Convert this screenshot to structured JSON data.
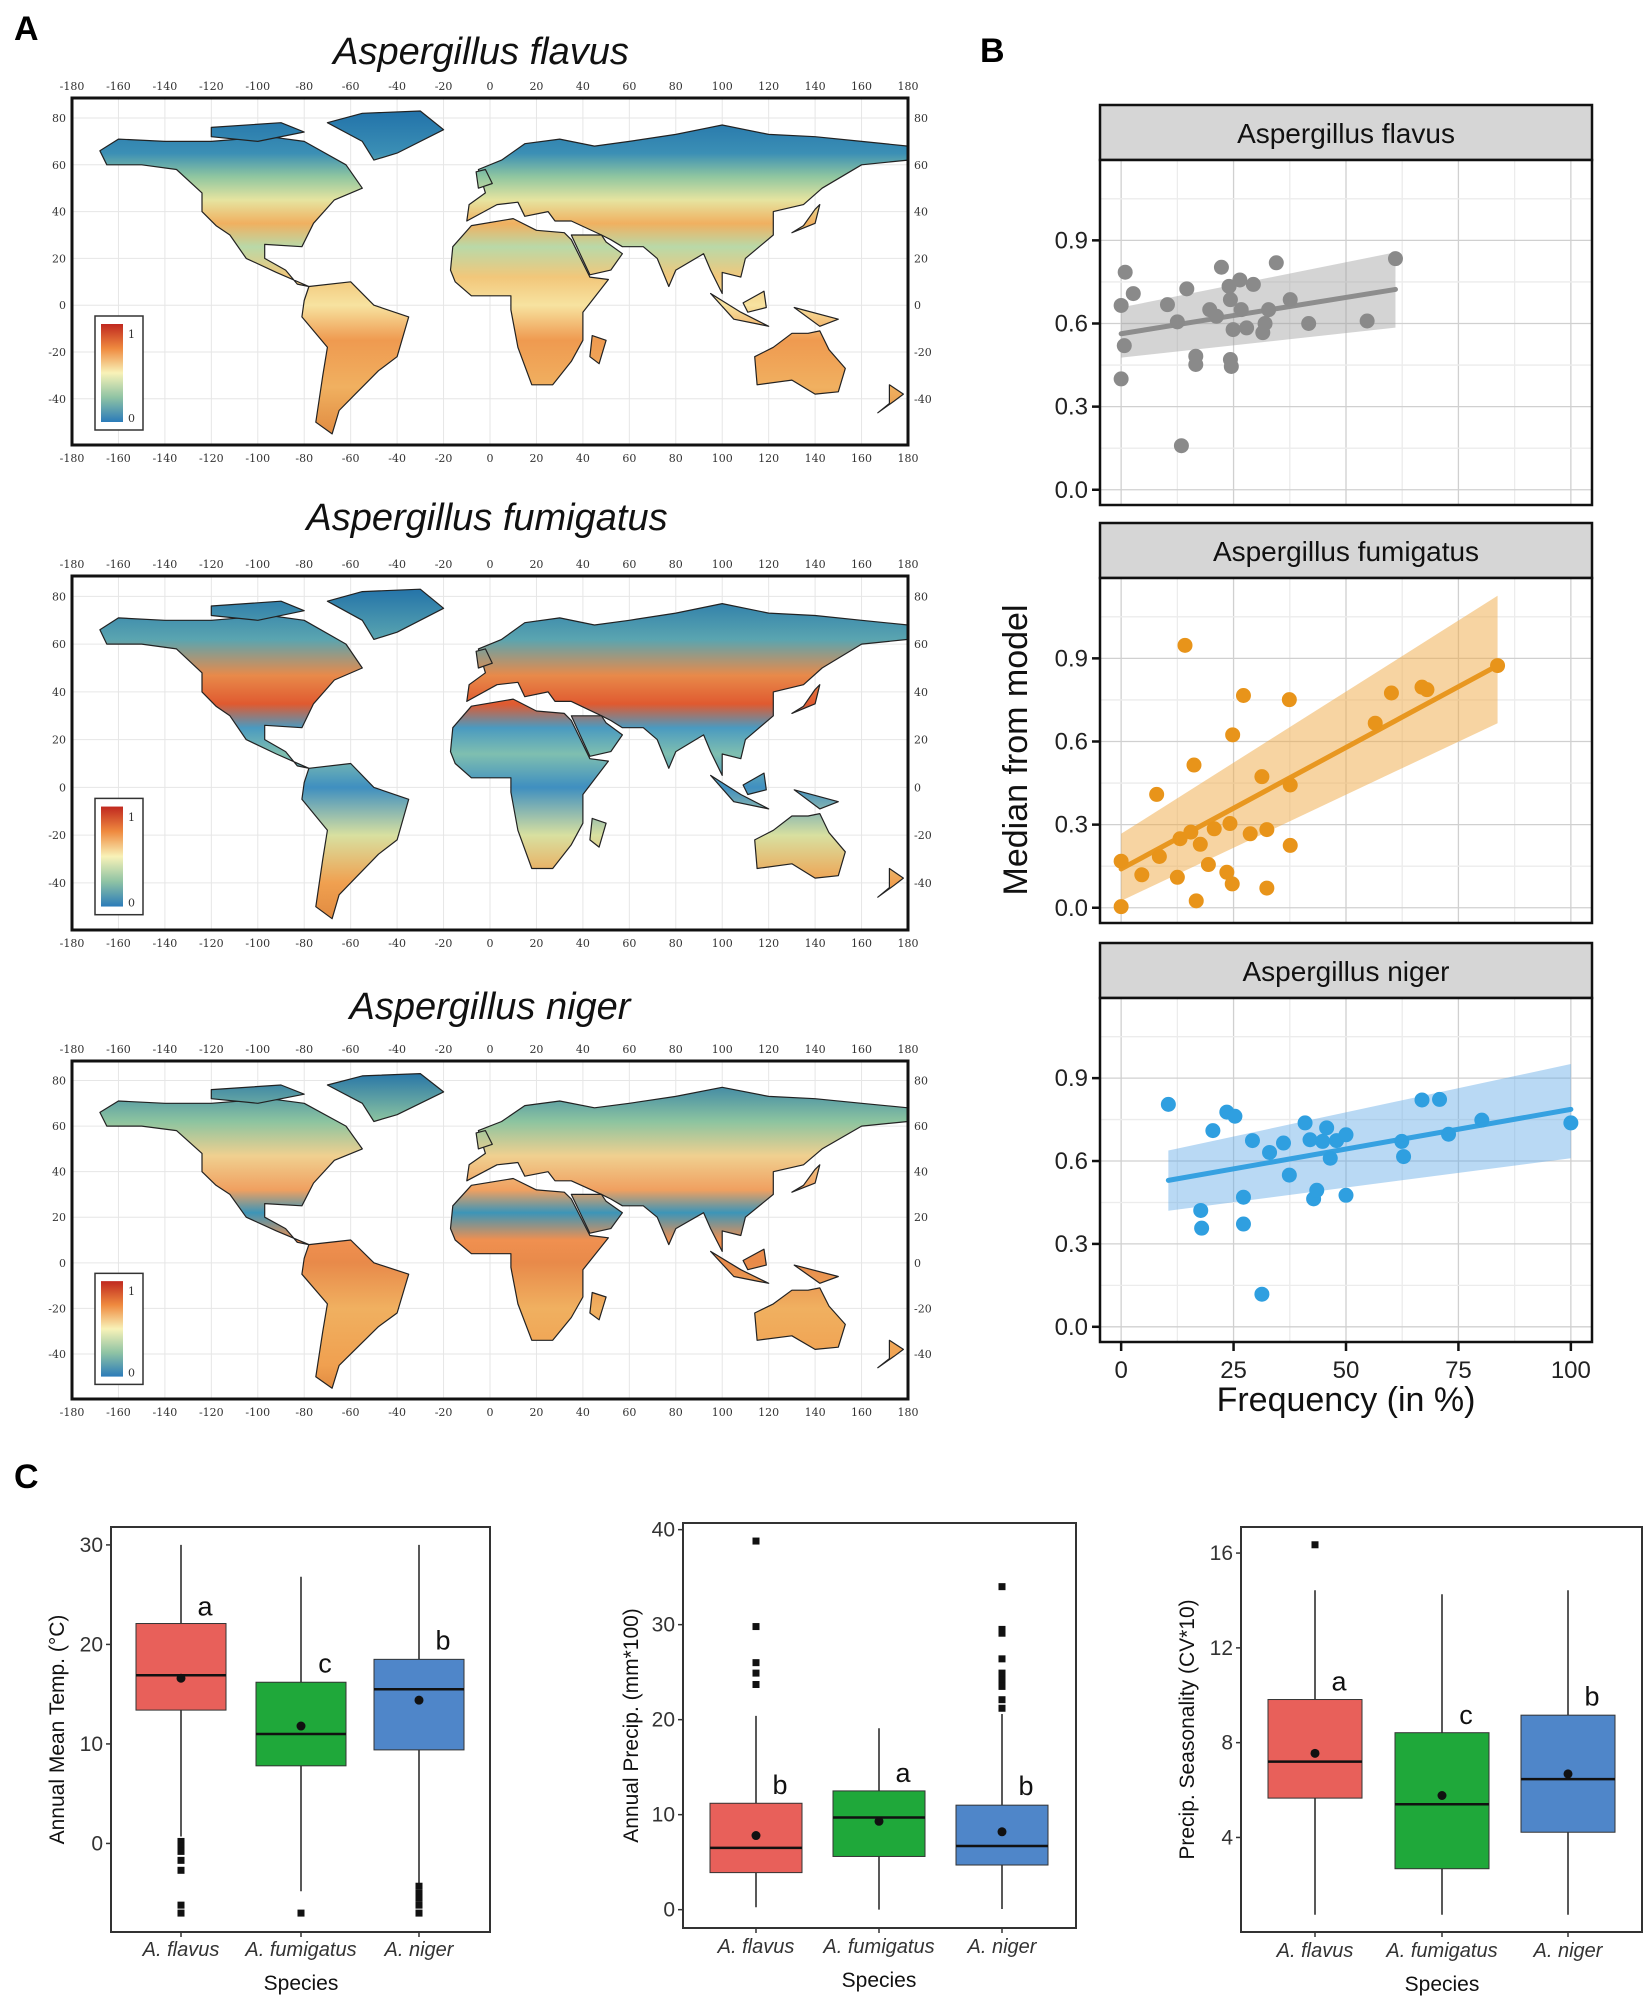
{
  "panel_labels": {
    "a": "A",
    "b": "B",
    "c": "C"
  },
  "panel_a": {
    "lon_ticks": [
      "-180",
      "-160",
      "-140",
      "-120",
      "-100",
      "-80",
      "-60",
      "-40",
      "-20",
      "0",
      "20",
      "40",
      "60",
      "80",
      "100",
      "120",
      "140",
      "160",
      "180"
    ],
    "lat_ticks": [
      "80",
      "60",
      "40",
      "20",
      "0",
      "-20",
      "-40"
    ],
    "maps": [
      {
        "title": "Aspergillus flavus",
        "legend_max": "1",
        "legend_min": "0"
      },
      {
        "title": "Aspergillus fumigatus",
        "legend_max": "1",
        "legend_min": "0"
      },
      {
        "title": "Aspergillus niger",
        "legend_max": "1",
        "legend_min": "0"
      }
    ]
  },
  "chart_data": [
    {
      "type": "scatter",
      "panel": "B",
      "xlabel": "Frequency (in %)",
      "ylabel": "Median from model",
      "xlim": [
        -4.7,
        104.7
      ],
      "ylim": [
        -0.055,
        1.19
      ],
      "x_ticks": [
        "0",
        "25",
        "50",
        "75",
        "100"
      ],
      "y_ticks": [
        "0.0",
        "0.3",
        "0.6",
        "0.9"
      ],
      "grid": true,
      "facets": [
        {
          "title": "Aspergillus flavus",
          "color": "#8a8a8a",
          "points": [
            [
              0.9,
              0.785
            ],
            [
              2.7,
              0.708
            ],
            [
              0,
              0.665
            ],
            [
              0.7,
              0.52
            ],
            [
              0,
              0.4
            ],
            [
              10.3,
              0.668
            ],
            [
              12.5,
              0.606
            ],
            [
              14.6,
              0.725
            ],
            [
              13.4,
              0.159
            ],
            [
              16.6,
              0.482
            ],
            [
              16.6,
              0.452
            ],
            [
              19.7,
              0.65
            ],
            [
              21.2,
              0.626
            ],
            [
              22.3,
              0.803
            ],
            [
              24.0,
              0.734
            ],
            [
              24.3,
              0.686
            ],
            [
              24.3,
              0.47
            ],
            [
              24.5,
              0.445
            ],
            [
              26.4,
              0.757
            ],
            [
              26.7,
              0.65
            ],
            [
              24.9,
              0.578
            ],
            [
              27.9,
              0.584
            ],
            [
              29.4,
              0.741
            ],
            [
              31.5,
              0.567
            ],
            [
              32.0,
              0.6
            ],
            [
              32.8,
              0.65
            ],
            [
              34.5,
              0.819
            ],
            [
              37.6,
              0.686
            ],
            [
              41.7,
              0.6
            ],
            [
              54.7,
              0.609
            ],
            [
              61.0,
              0.834
            ]
          ],
          "trend": {
            "x": [
              0,
              61
            ],
            "y": [
              0.563,
              0.723
            ]
          },
          "band": {
            "x": [
              0,
              61
            ],
            "lower": [
              0.477,
              0.585
            ],
            "upper": [
              0.658,
              0.857
            ]
          }
        },
        {
          "title": "Aspergillus fumigatus",
          "color": "#e8941a",
          "points": [
            [
              0,
              0.004
            ],
            [
              0,
              0.168
            ],
            [
              4.6,
              0.119
            ],
            [
              7.9,
              0.409
            ],
            [
              8.5,
              0.185
            ],
            [
              12.5,
              0.11
            ],
            [
              13.1,
              0.249
            ],
            [
              14.2,
              0.947
            ],
            [
              15.5,
              0.273
            ],
            [
              16.2,
              0.515
            ],
            [
              16.7,
              0.025
            ],
            [
              17.6,
              0.229
            ],
            [
              19.4,
              0.156
            ],
            [
              20.7,
              0.285
            ],
            [
              23.5,
              0.128
            ],
            [
              24.2,
              0.304
            ],
            [
              24.7,
              0.086
            ],
            [
              24.8,
              0.624
            ],
            [
              27.2,
              0.766
            ],
            [
              28.7,
              0.267
            ],
            [
              31.3,
              0.473
            ],
            [
              32.4,
              0.282
            ],
            [
              32.4,
              0.071
            ],
            [
              37.4,
              0.751
            ],
            [
              37.6,
              0.443
            ],
            [
              37.6,
              0.225
            ],
            [
              56.5,
              0.666
            ],
            [
              60.1,
              0.775
            ],
            [
              66.9,
              0.796
            ],
            [
              68.0,
              0.787
            ],
            [
              83.7,
              0.874
            ]
          ],
          "trend": {
            "x": [
              0,
              83.7
            ],
            "y": [
              0.14,
              0.874
            ]
          },
          "band": {
            "x": [
              0,
              83.7
            ],
            "lower": [
              0.025,
              0.666
            ],
            "upper": [
              0.267,
              1.126
            ]
          }
        },
        {
          "title": "Aspergillus niger",
          "color": "#2f9fe0",
          "points": [
            [
              10.5,
              0.805
            ],
            [
              17.7,
              0.421
            ],
            [
              17.9,
              0.357
            ],
            [
              20.4,
              0.71
            ],
            [
              23.5,
              0.777
            ],
            [
              25.3,
              0.762
            ],
            [
              27.2,
              0.469
            ],
            [
              27.2,
              0.372
            ],
            [
              29.2,
              0.674
            ],
            [
              31.3,
              0.118
            ],
            [
              33.0,
              0.631
            ],
            [
              36.1,
              0.665
            ],
            [
              37.4,
              0.549
            ],
            [
              40.9,
              0.738
            ],
            [
              42.0,
              0.677
            ],
            [
              42.8,
              0.463
            ],
            [
              43.5,
              0.494
            ],
            [
              44.8,
              0.671
            ],
            [
              45.7,
              0.72
            ],
            [
              46.5,
              0.61
            ],
            [
              47.9,
              0.674
            ],
            [
              50.0,
              0.695
            ],
            [
              50.0,
              0.476
            ],
            [
              62.4,
              0.671
            ],
            [
              62.8,
              0.616
            ],
            [
              66.9,
              0.821
            ],
            [
              70.8,
              0.823
            ],
            [
              72.8,
              0.697
            ],
            [
              80.2,
              0.748
            ],
            [
              100,
              0.738
            ]
          ],
          "trend": {
            "x": [
              10.5,
              100
            ],
            "y": [
              0.53,
              0.787
            ]
          },
          "band": {
            "x": [
              10.5,
              100
            ],
            "lower": [
              0.42,
              0.61
            ],
            "upper": [
              0.638,
              0.951
            ]
          }
        }
      ]
    },
    {
      "type": "box",
      "panel": "C",
      "ylabel": "Annual Mean Temp. (°C)",
      "xlabel": "Species",
      "ylim": [
        -8.9,
        31.8
      ],
      "y_ticks": [
        "0",
        "10",
        "20",
        "30"
      ],
      "series": [
        {
          "name": "A. flavus",
          "color": "#e8605a",
          "q1": 13.4,
          "median": 16.9,
          "q3": 22.1,
          "mean": 16.6,
          "whisker_low": 0.7,
          "whisker_high": 30,
          "outliers": [
            0.2,
            -0.3,
            -0.8,
            -1.7,
            -2.7,
            -6.2,
            -7.0
          ],
          "letter": "a",
          "letter_y": 23.8
        },
        {
          "name": "A. fumigatus",
          "color": "#1fa83a",
          "q1": 7.8,
          "median": 11.0,
          "q3": 16.2,
          "mean": 11.8,
          "whisker_low": -4.8,
          "whisker_high": 26.8,
          "outliers": [
            -7.0
          ],
          "letter": "c",
          "letter_y": 18.1
        },
        {
          "name": "A. niger",
          "color": "#4f86c9",
          "q1": 9.4,
          "median": 15.5,
          "q3": 18.5,
          "mean": 14.4,
          "whisker_low": -4.0,
          "whisker_high": 30,
          "outliers": [
            -4.3,
            -5.0,
            -5.5,
            -6.2,
            -7.0
          ],
          "letter": "b",
          "letter_y": 20.4
        }
      ]
    },
    {
      "type": "box",
      "panel": "C",
      "ylabel": "Annual Precip. (mm*100)",
      "xlabel": "Species",
      "ylim": [
        -1.93,
        40.7
      ],
      "y_ticks": [
        "0",
        "10",
        "20",
        "30",
        "40"
      ],
      "series": [
        {
          "name": "A. flavus",
          "color": "#e8605a",
          "q1": 3.9,
          "median": 6.5,
          "q3": 11.2,
          "mean": 7.8,
          "whisker_low": 0.25,
          "whisker_high": 20.4,
          "outliers": [
            38.8,
            29.8,
            26.0,
            24.9,
            23.7
          ],
          "letter": "b",
          "letter_y": 13.1
        },
        {
          "name": "A. fumigatus",
          "color": "#1fa83a",
          "q1": 5.6,
          "median": 9.7,
          "q3": 12.5,
          "mean": 9.3,
          "whisker_low": 0,
          "whisker_high": 19.1,
          "outliers": [],
          "letter": "a",
          "letter_y": 14.4
        },
        {
          "name": "A. niger",
          "color": "#4f86c9",
          "q1": 4.7,
          "median": 6.7,
          "q3": 11.0,
          "mean": 8.2,
          "whisker_low": 0.07,
          "whisker_high": 20.6,
          "outliers": [
            34.0,
            29.5,
            29.1,
            26.4,
            24.9,
            24.2,
            23.5,
            22.1,
            21.2
          ],
          "letter": "b",
          "letter_y": 13.0
        }
      ]
    },
    {
      "type": "box",
      "panel": "C",
      "ylabel": "Precip. Seasonality (CV*10)",
      "xlabel": "Species",
      "ylim": [
        0.01,
        17.1
      ],
      "y_ticks": [
        "4",
        "8",
        "12",
        "16"
      ],
      "series": [
        {
          "name": "A. flavus",
          "color": "#e8605a",
          "q1": 5.66,
          "median": 7.2,
          "q3": 9.82,
          "mean": 7.55,
          "whisker_low": 0.74,
          "whisker_high": 14.43,
          "outliers": [
            16.35
          ],
          "letter": "a",
          "letter_y": 10.57
        },
        {
          "name": "A. fumigatus",
          "color": "#1fa83a",
          "q1": 2.68,
          "median": 5.4,
          "q3": 8.42,
          "mean": 5.77,
          "whisker_low": 0.74,
          "whisker_high": 14.26,
          "outliers": [],
          "letter": "c",
          "letter_y": 9.16
        },
        {
          "name": "A. niger",
          "color": "#4f86c9",
          "q1": 4.22,
          "median": 6.46,
          "q3": 9.16,
          "mean": 6.68,
          "whisker_low": 0.74,
          "whisker_high": 14.43,
          "outliers": [],
          "letter": "b",
          "letter_y": 9.94
        }
      ]
    }
  ]
}
